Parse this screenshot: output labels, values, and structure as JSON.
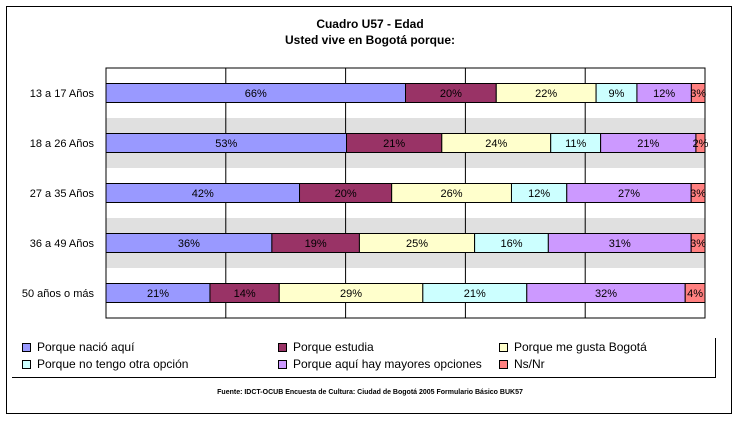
{
  "chart_data": {
    "type": "bar",
    "orientation": "horizontal",
    "stacked": true,
    "title": "Cuadro U57 - Edad",
    "subtitle": "Usted vive en Bogotá porque:",
    "categories": [
      "13 a 17 Años",
      "18 a 26 Años",
      "27 a 35 Años",
      "36 a 49 Años",
      "50 años o más"
    ],
    "series": [
      {
        "name": "Porque nació aquí",
        "color": "#9999ff",
        "values": [
          66,
          53,
          42,
          36,
          21
        ]
      },
      {
        "name": "Porque estudia",
        "color": "#993366",
        "values": [
          20,
          21,
          20,
          19,
          14
        ]
      },
      {
        "name": "Porque me gusta Bogotá",
        "color": "#ffffcc",
        "values": [
          22,
          24,
          26,
          25,
          29
        ]
      },
      {
        "name": "Porque no tengo otra opción",
        "color": "#ccffff",
        "values": [
          9,
          11,
          12,
          16,
          21
        ]
      },
      {
        "name": "Porque aquí hay mayores opciones",
        "color": "#cc99ff",
        "values": [
          12,
          21,
          27,
          31,
          32
        ]
      },
      {
        "name": "Ns/Nr",
        "color": "#ff8080",
        "values": [
          3,
          2,
          3,
          3,
          4
        ]
      }
    ],
    "grid": true,
    "legend_position": "bottom"
  },
  "source": "Fuente: IDCT-OCUB Encuesta de Cultura: Ciudad de Bogotá 2005 Formulario Básico BUK57"
}
